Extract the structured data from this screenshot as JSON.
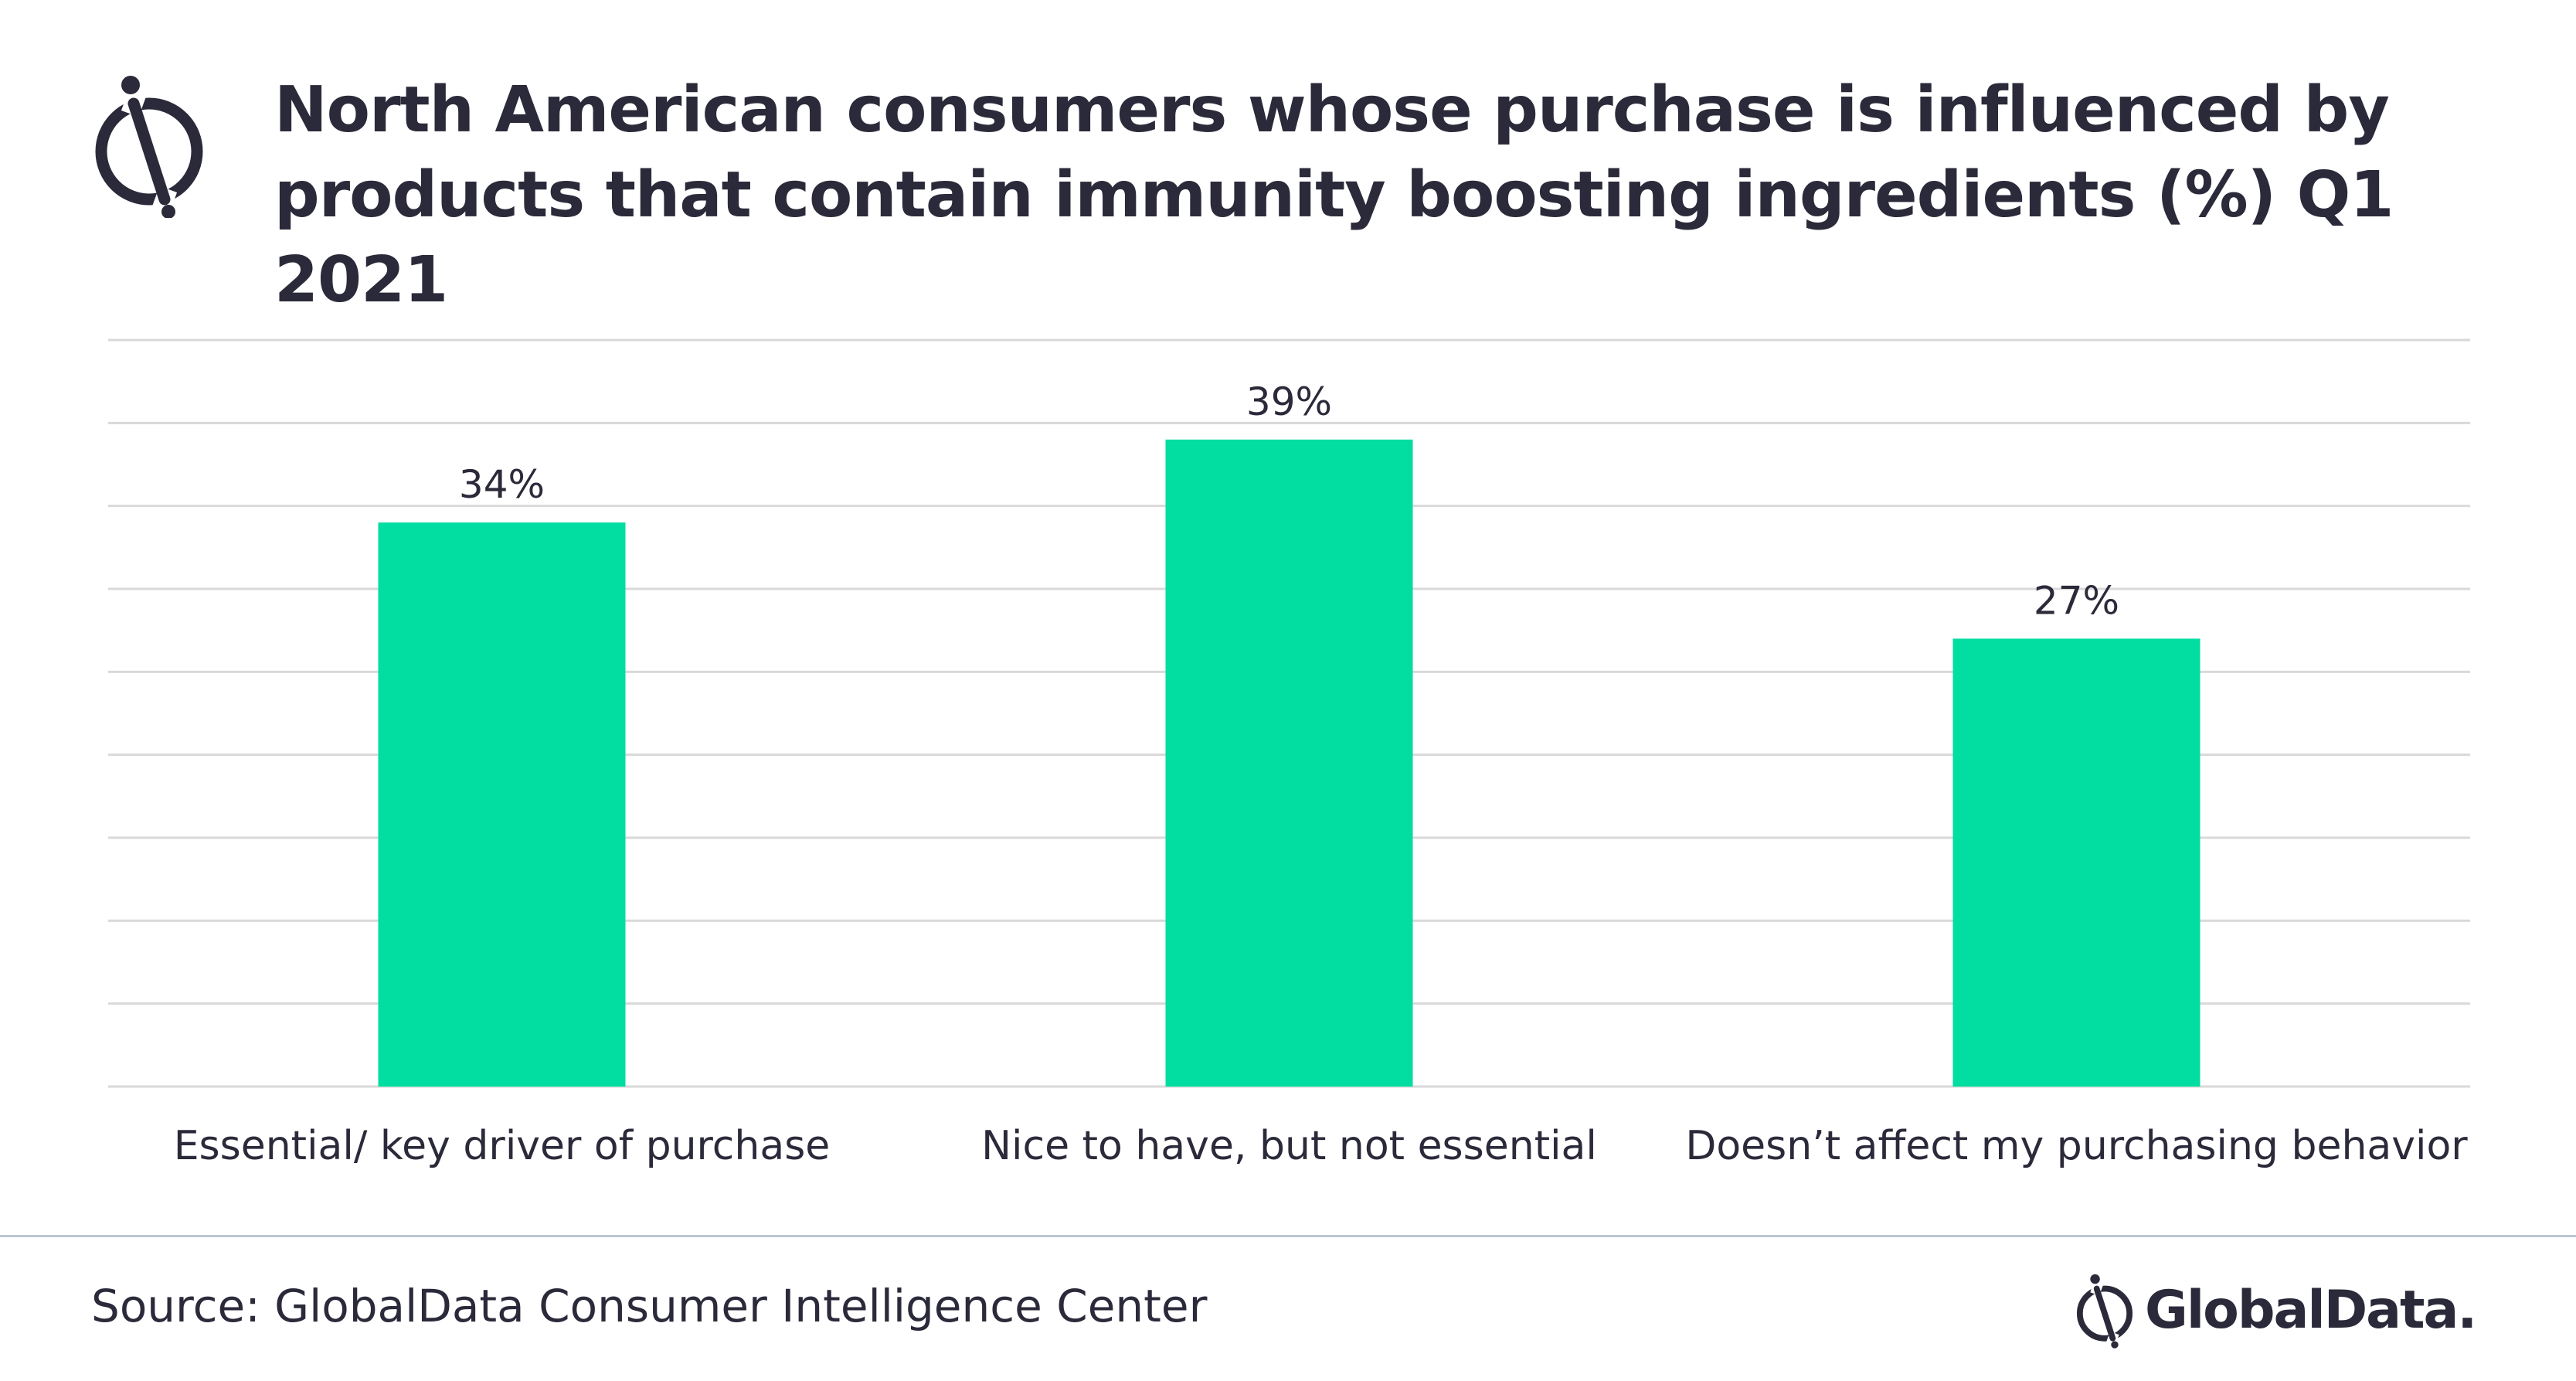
{
  "header": {
    "icon": "globaldata-icon",
    "title": "North American consumers whose purchase is influenced by products that contain immunity boosting ingredients (%) Q1 2021"
  },
  "chart_data": {
    "type": "bar",
    "title": "North American consumers whose purchase is influenced by products that contain immunity boosting ingredients (%) Q1 2021",
    "categories": [
      "Essential/ key driver of purchase",
      "Nice to have, but not essential",
      "Doesn’t affect my purchasing behavior"
    ],
    "values": [
      34,
      39,
      27
    ],
    "value_labels": [
      "34%",
      "39%",
      "27%"
    ],
    "ylim": [
      0,
      45
    ],
    "ytick_step": 5,
    "ytick_labels_visible": false,
    "grid": true,
    "bar_color": "#02dda1",
    "grid_color": "#d9d9d9",
    "xlabel": "",
    "ylabel": ""
  },
  "footer": {
    "source": "Source: GlobalData Consumer Intelligence Center",
    "brand_name": "GlobalData.",
    "brand_icon": "globaldata-icon"
  },
  "colors": {
    "text": "#2b2a3a",
    "divider": "#b9c7d2"
  }
}
